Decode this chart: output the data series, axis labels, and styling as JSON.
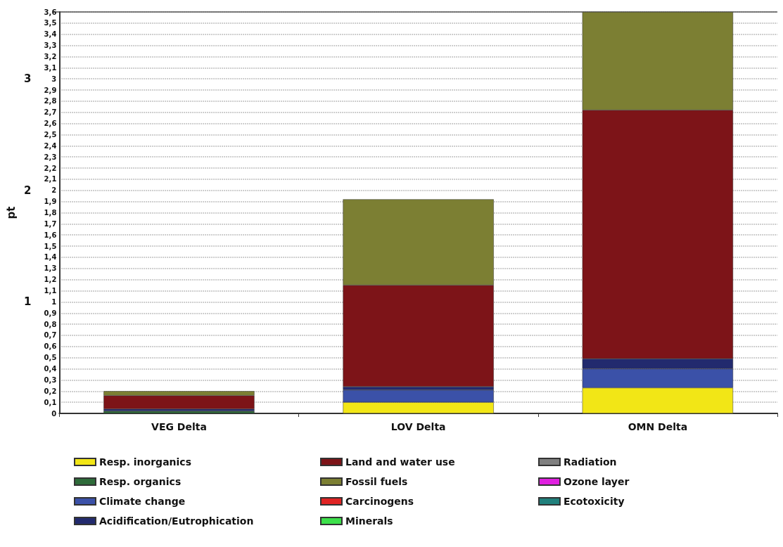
{
  "chart_data": {
    "type": "bar",
    "stacked": true,
    "y2label": "pt",
    "categories": [
      "VEG Delta",
      "LOV Delta",
      "OMN Delta"
    ],
    "series": [
      {
        "name": "Resp. inorganics",
        "color": "#f2e616",
        "values": [
          null,
          0.1,
          0.23
        ]
      },
      {
        "name": "Resp. organics",
        "color": "#2e6b3a",
        "values": [
          0.02,
          null,
          null
        ]
      },
      {
        "name": "Climate change",
        "color": "#3b51a8",
        "values": [
          null,
          0.11,
          0.17
        ]
      },
      {
        "name": "Acidification/Eutrophication",
        "color": "#222a6e",
        "values": [
          0.02,
          0.03,
          0.09
        ]
      },
      {
        "name": "Land and water use",
        "color": "#7d1418",
        "values": [
          0.12,
          0.91,
          2.23
        ]
      },
      {
        "name": "Fossil fuels",
        "color": "#7c7f33",
        "values": [
          0.04,
          0.77,
          0.88
        ]
      },
      {
        "name": "Carcinogens",
        "color": "#e02424",
        "values": [
          null,
          null,
          null
        ]
      },
      {
        "name": "Minerals",
        "color": "#3ce04a",
        "values": [
          null,
          null,
          null
        ]
      },
      {
        "name": "Radiation",
        "color": "#808080",
        "values": [
          null,
          null,
          null
        ]
      },
      {
        "name": "Ozone layer",
        "color": "#e020e0",
        "values": [
          null,
          null,
          null
        ]
      },
      {
        "name": "Ecotoxicity",
        "color": "#20807c",
        "values": [
          null,
          null,
          null
        ]
      }
    ],
    "ylim": [
      0,
      3.6
    ],
    "yticks": [
      0,
      {
        "value": 0.1,
        "label": "0,1"
      },
      {
        "value": 0.2,
        "label": "0,2"
      },
      {
        "value": 0.3,
        "label": "0,3"
      },
      {
        "value": 0.4,
        "label": "0,4"
      },
      {
        "value": 0.5,
        "label": "0,5"
      },
      {
        "value": 0.6,
        "label": "0,6"
      },
      {
        "value": 0.7,
        "label": "0,7"
      },
      {
        "value": 0.8,
        "label": "0,8"
      },
      {
        "value": 0.9,
        "label": "0,9"
      },
      1,
      {
        "value": 1.1,
        "label": "1,1"
      },
      {
        "value": 1.2,
        "label": "1,2"
      },
      {
        "value": 1.3,
        "label": "1,3"
      },
      {
        "value": 1.4,
        "label": "1,4"
      },
      {
        "value": 1.5,
        "label": "1,5"
      },
      {
        "value": 1.6,
        "label": "1,6"
      },
      {
        "value": 1.7,
        "label": "1,7"
      },
      {
        "value": 1.8,
        "label": "1,8"
      },
      {
        "value": 1.9,
        "label": "1,9"
      },
      2,
      {
        "value": 2.1,
        "label": "2,1"
      },
      {
        "value": 2.2,
        "label": "2,2"
      },
      {
        "value": 2.3,
        "label": "2,3"
      },
      {
        "value": 2.4,
        "label": "2,4"
      },
      {
        "value": 2.5,
        "label": "2,5"
      },
      {
        "value": 2.6,
        "label": "2,6"
      },
      {
        "value": 2.7,
        "label": "2,7"
      },
      {
        "value": 2.8,
        "label": "2,8"
      },
      {
        "value": 2.9,
        "label": "2,9"
      },
      3,
      {
        "value": 3.1,
        "label": "3,1"
      },
      {
        "value": 3.2,
        "label": "3,2"
      },
      {
        "value": 3.3,
        "label": "3,3"
      },
      {
        "value": 3.4,
        "label": "3,4"
      },
      {
        "value": 3.5,
        "label": "3,5"
      },
      {
        "value": 3.6,
        "label": "3,6"
      }
    ],
    "y2lim": [
      0,
      3.6
    ],
    "y2ticks": [
      1,
      2,
      3
    ],
    "grid": "y",
    "legend": "bottom"
  }
}
